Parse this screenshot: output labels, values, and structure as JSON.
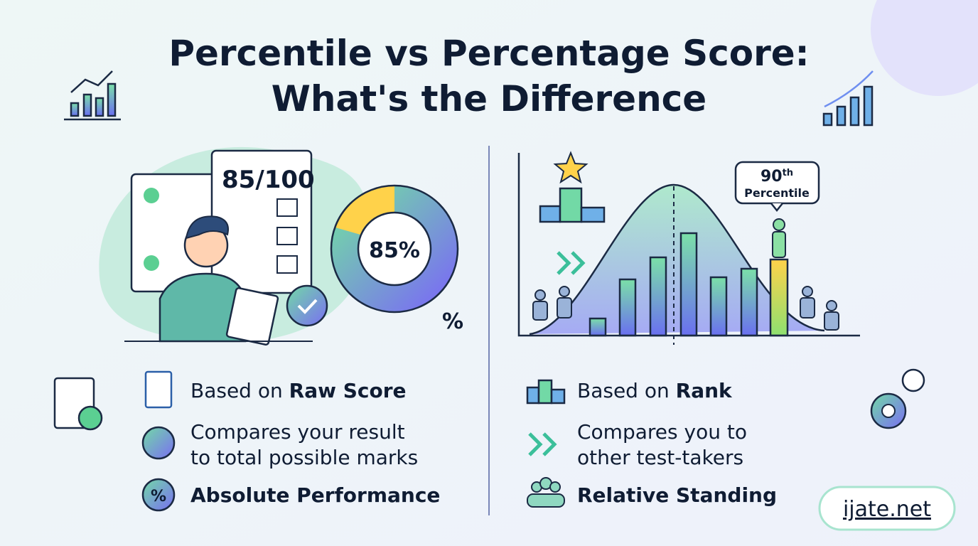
{
  "header": {
    "title_lines": [
      "Percentile vs Percentage Score:",
      "What's the Difference"
    ]
  },
  "left_panel": {
    "score_sheet": "85/100",
    "donut_label": "85%",
    "percent_sign": "%",
    "items": [
      {
        "prefix": "Based on ",
        "bold": "Raw Score"
      },
      {
        "lines": [
          "Compares your result",
          "to total possible marks"
        ]
      },
      {
        "bold": "Absolute Performance"
      }
    ]
  },
  "right_panel": {
    "callout": {
      "number": "90",
      "suffix": "th",
      "word": "Percentile"
    },
    "items": [
      {
        "prefix": "Based on ",
        "bold": "Rank"
      },
      {
        "lines": [
          "Compares you to",
          "other test-takers"
        ]
      },
      {
        "bold": "Relative Standing"
      }
    ]
  },
  "footer": {
    "site": "ijate.net"
  }
}
